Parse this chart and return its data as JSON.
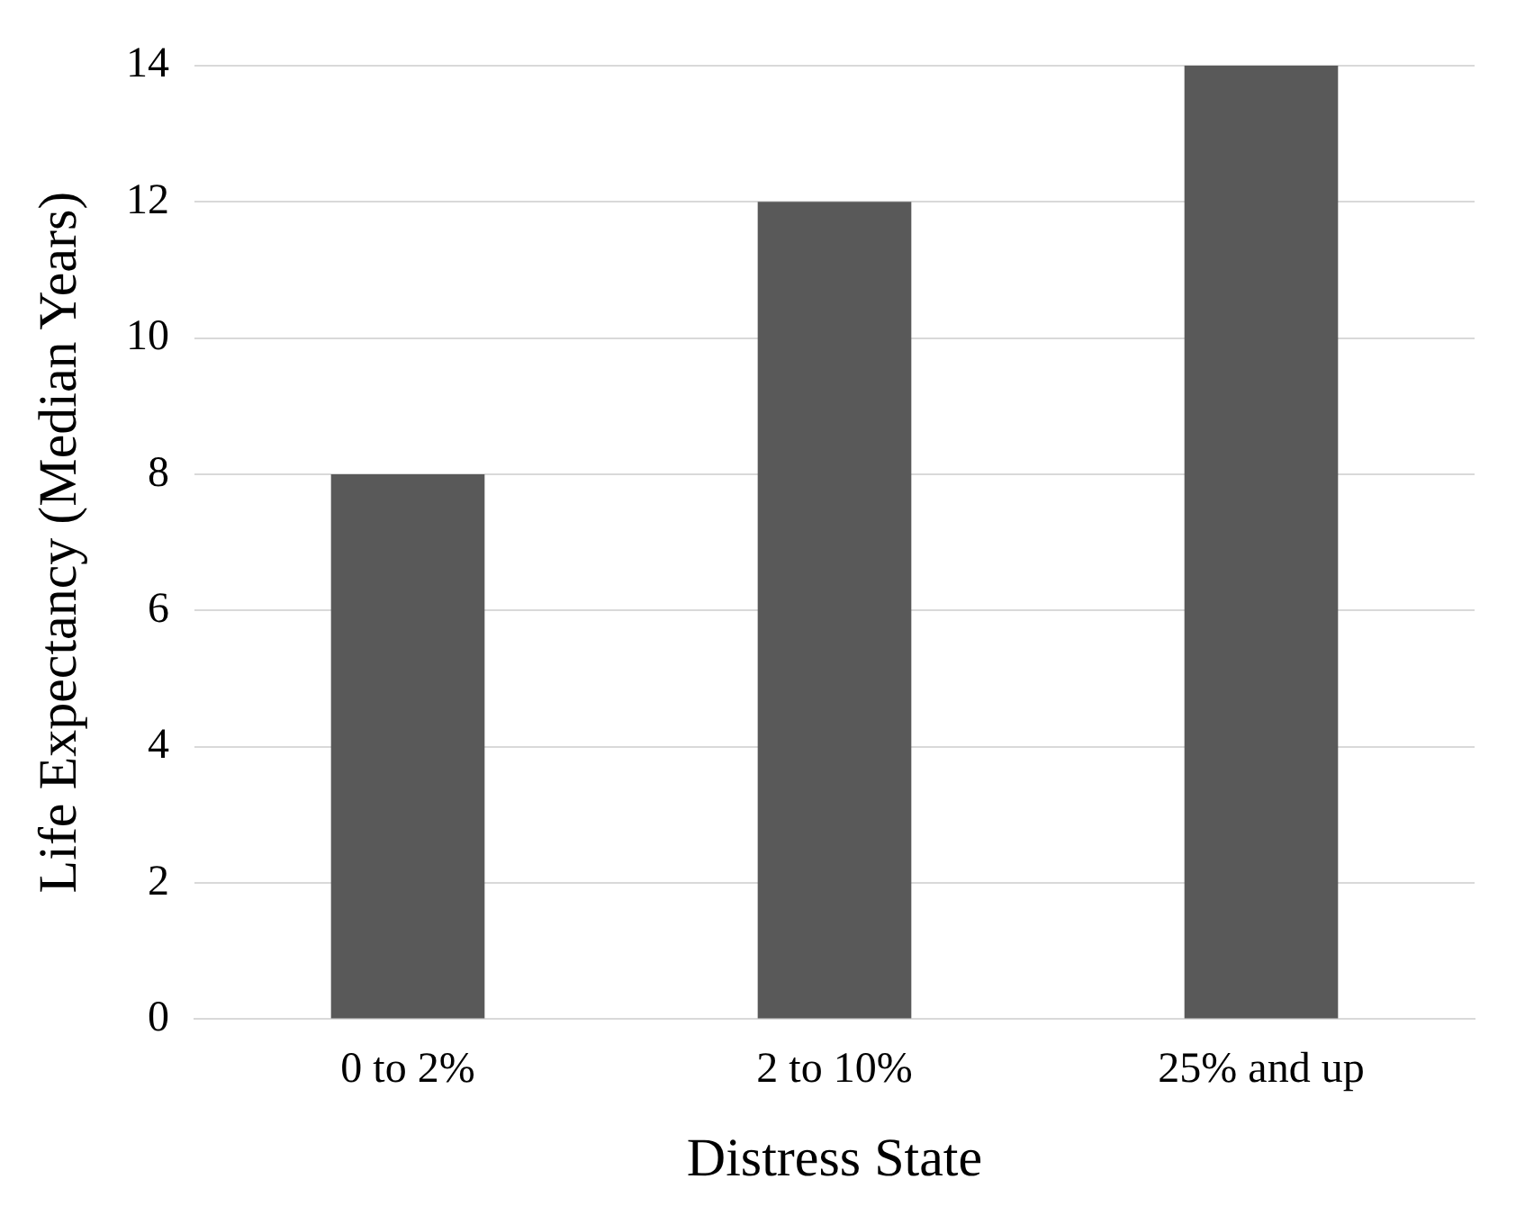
{
  "chart_data": {
    "type": "bar",
    "xlabel": "Distress State",
    "ylabel": "Life Expectancy (Median Years)",
    "categories": [
      "0 to 2%",
      "2 to 10%",
      "25% and up"
    ],
    "values": [
      8,
      12,
      14
    ],
    "color": "#595959",
    "ylim": [
      0,
      14
    ],
    "yticks": [
      0,
      2,
      4,
      6,
      8,
      10,
      12,
      14
    ],
    "grid": "y"
  }
}
